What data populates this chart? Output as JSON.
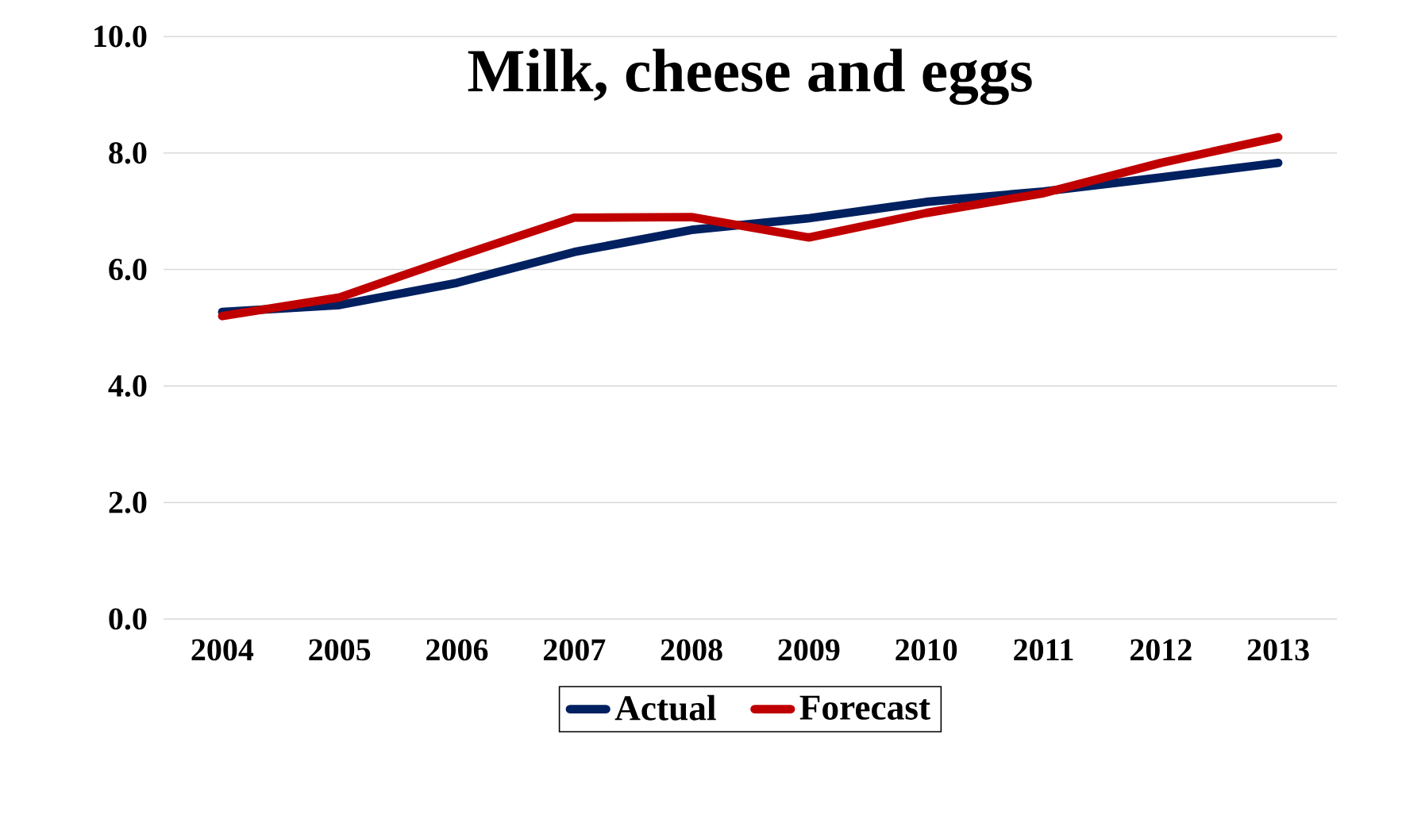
{
  "chart_data": {
    "type": "line",
    "title": "Milk, cheese and eggs",
    "categories": [
      "2004",
      "2005",
      "2006",
      "2007",
      "2008",
      "2009",
      "2010",
      "2011",
      "2012",
      "2013"
    ],
    "series": [
      {
        "name": "Actual",
        "color": "#002060",
        "values": [
          5.27,
          5.39,
          5.77,
          6.3,
          6.68,
          6.88,
          7.16,
          7.34,
          7.58,
          7.83
        ]
      },
      {
        "name": "Forecast",
        "color": "#c00000",
        "values": [
          5.2,
          5.52,
          6.22,
          6.89,
          6.9,
          6.55,
          6.97,
          7.31,
          7.83,
          8.27
        ]
      }
    ],
    "ylim": [
      0,
      10
    ],
    "yticks": [
      {
        "value": 0,
        "label": "0.0"
      },
      {
        "value": 2,
        "label": "2.0"
      },
      {
        "value": 4,
        "label": "4.0"
      },
      {
        "value": 6,
        "label": "6.0"
      },
      {
        "value": 8,
        "label": "8.0"
      },
      {
        "value": 10,
        "label": "10.0"
      }
    ],
    "grid": "y",
    "legend": "bottom",
    "marker": "none",
    "line_style": "solid"
  }
}
